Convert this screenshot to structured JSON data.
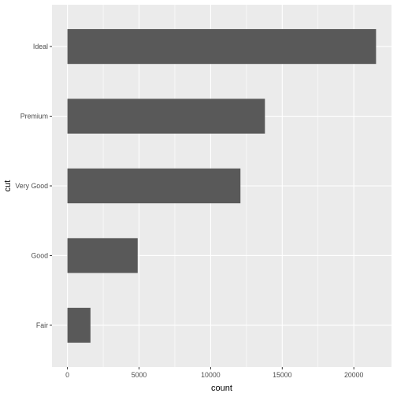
{
  "chart_data": {
    "type": "bar",
    "orientation": "horizontal",
    "categories": [
      "Fair",
      "Good",
      "Very Good",
      "Premium",
      "Ideal"
    ],
    "values": [
      1610,
      4906,
      12082,
      13791,
      21551
    ],
    "xlabel": "count",
    "ylabel": "cut",
    "xlim": [
      0,
      21551
    ],
    "x_ticks": [
      0,
      5000,
      10000,
      15000,
      20000
    ],
    "x_tick_labels": [
      "0",
      "5000",
      "10000",
      "15000",
      "20000"
    ],
    "grid": true,
    "legend": "none",
    "colors": {
      "panel_background": "#ebebeb",
      "grid_major": "#ffffff",
      "bar_fill": "#595959",
      "tick_mark": "#333333"
    }
  }
}
